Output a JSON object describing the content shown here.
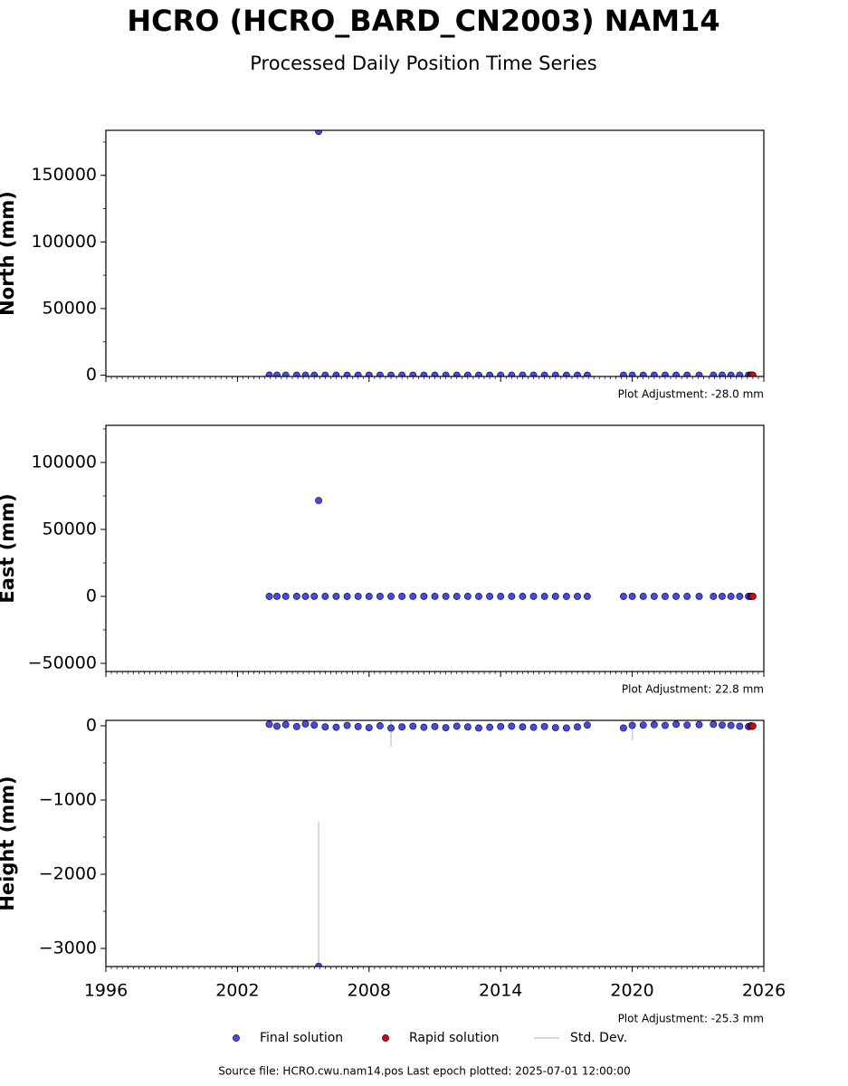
{
  "title": "HCRO (HCRO_BARD_CN2003) NAM14",
  "subtitle": "Processed Daily Position Time Series",
  "footnote": "Source file: HCRO.cwu.nam14.pos  Last epoch plotted: 2025-07-01 12:00:00",
  "chart_data": [
    {
      "type": "scatter",
      "ylabel": "North (mm)",
      "annotation": "Plot Adjustment: -28.0 mm",
      "ylim": [
        -1000,
        183800
      ],
      "yticks": [
        0,
        50000,
        100000,
        150000
      ],
      "series": [
        {
          "color": "#4a4ae0",
          "x": [
            2003.45,
            2003.8,
            2004.2,
            2004.7,
            2005.1,
            2005.5,
            2005.7,
            2006.0,
            2006.5,
            2007.0,
            2007.5,
            2008.0,
            2008.5,
            2009.0,
            2009.5,
            2010.0,
            2010.5,
            2011.0,
            2011.5,
            2012.0,
            2012.5,
            2013.0,
            2013.5,
            2014.0,
            2014.5,
            2015.0,
            2015.5,
            2016.0,
            2016.5,
            2017.0,
            2017.5,
            2017.95,
            2019.6,
            2020.0,
            2020.5,
            2021.0,
            2021.5,
            2022.0,
            2022.5,
            2023.05,
            2023.7,
            2024.1,
            2024.5,
            2024.9,
            2025.3
          ],
          "values": [
            15,
            -8,
            10,
            -3,
            6,
            4,
            183000,
            2,
            -4,
            5,
            -6,
            3,
            -2,
            7,
            -5,
            1,
            4,
            -3,
            6,
            -7,
            2,
            5,
            -4,
            3,
            -1,
            6,
            -2,
            4,
            -5,
            3,
            -6,
            2,
            8,
            -4,
            3,
            -2,
            5,
            -3,
            1,
            -6,
            4,
            -2,
            3,
            -1,
            2
          ]
        },
        {
          "color": "#e00000",
          "x": [
            2025.38,
            2025.42,
            2025.46,
            2025.5
          ],
          "values": [
            3,
            -2,
            4,
            1
          ]
        }
      ]
    },
    {
      "type": "scatter",
      "ylabel": "East (mm)",
      "annotation": "Plot Adjustment: 22.8 mm",
      "ylim": [
        -56100,
        127700
      ],
      "yticks": [
        {
          "value": -50000,
          "label": "−50000"
        },
        0,
        50000,
        100000
      ],
      "series": [
        {
          "color": "#4a4ae0",
          "x": [
            2003.45,
            2003.8,
            2004.2,
            2004.7,
            2005.1,
            2005.5,
            2005.7,
            2006.0,
            2006.5,
            2007.0,
            2007.5,
            2008.0,
            2008.5,
            2009.0,
            2009.5,
            2010.0,
            2010.5,
            2011.0,
            2011.5,
            2012.0,
            2012.5,
            2013.0,
            2013.5,
            2014.0,
            2014.5,
            2015.0,
            2015.5,
            2016.0,
            2016.5,
            2017.0,
            2017.5,
            2017.95,
            2019.6,
            2020.0,
            2020.5,
            2021.0,
            2021.5,
            2022.0,
            2022.5,
            2023.05,
            2023.7,
            2024.1,
            2024.5,
            2024.9,
            2025.3
          ],
          "values": [
            -10,
            6,
            -4,
            8,
            -2,
            5,
            71600,
            -3,
            4,
            -6,
            2,
            -5,
            7,
            -1,
            3,
            -4,
            6,
            -2,
            5,
            -7,
            1,
            -3,
            4,
            -6,
            2,
            -1,
            5,
            -4,
            3,
            -2,
            6,
            -5,
            -8,
            3,
            -4,
            2,
            -6,
            5,
            -3,
            4,
            -2,
            6,
            -1,
            3,
            -4
          ]
        },
        {
          "color": "#e00000",
          "x": [
            2025.38,
            2025.42,
            2025.46,
            2025.5
          ],
          "values": [
            -2,
            3,
            -1,
            2
          ]
        }
      ]
    },
    {
      "type": "scatter",
      "ylabel": "Height (mm)",
      "annotation": "Plot Adjustment: -25.3 mm",
      "ylim": [
        -3244,
        73
      ],
      "yticks": [
        {
          "value": -3000,
          "label": "−3000"
        },
        {
          "value": -2000,
          "label": "−2000"
        },
        {
          "value": -1000,
          "label": "−1000"
        },
        0
      ],
      "xlim": [
        1996,
        2026
      ],
      "xticks": [
        1996,
        2002,
        2008,
        2014,
        2020,
        2026
      ],
      "std_label": "Std. Dev.",
      "std_color": "#cccccc",
      "series": [
        {
          "name": "Final solution",
          "color": "#4a4ae0",
          "x": [
            2003.45,
            2003.8,
            2004.2,
            2004.7,
            2005.1,
            2005.5,
            2005.7,
            2006.0,
            2006.5,
            2007.0,
            2007.5,
            2008.0,
            2008.5,
            2009.0,
            2009.5,
            2010.0,
            2010.5,
            2011.0,
            2011.5,
            2012.0,
            2012.5,
            2013.0,
            2013.5,
            2014.0,
            2014.5,
            2015.0,
            2015.5,
            2016.0,
            2016.5,
            2017.0,
            2017.5,
            2017.95,
            2019.6,
            2020.0,
            2020.5,
            2021.0,
            2021.5,
            2022.0,
            2022.5,
            2023.05,
            2023.7,
            2024.1,
            2024.5,
            2024.9,
            2025.3
          ],
          "values": [
            20,
            -5,
            15,
            -10,
            25,
            10,
            -3240,
            -15,
            -20,
            5,
            -10,
            -25,
            0,
            -30,
            -15,
            -5,
            -20,
            -10,
            -25,
            -5,
            -15,
            -30,
            -20,
            -10,
            -5,
            -15,
            -20,
            -10,
            -25,
            -30,
            -15,
            10,
            -30,
            5,
            10,
            15,
            5,
            20,
            10,
            15,
            20,
            10,
            5,
            -5,
            -10
          ],
          "errors": [
            3,
            3,
            3,
            3,
            3,
            3,
            1940,
            3,
            3,
            3,
            3,
            3,
            3,
            250,
            3,
            3,
            3,
            3,
            3,
            3,
            3,
            3,
            3,
            3,
            3,
            3,
            3,
            3,
            3,
            3,
            3,
            3,
            3,
            200,
            3,
            3,
            3,
            3,
            3,
            3,
            3,
            3,
            3,
            3,
            3
          ]
        },
        {
          "name": "Rapid solution",
          "color": "#e00000",
          "x": [
            2025.38,
            2025.42,
            2025.46,
            2025.5
          ],
          "values": [
            -5,
            0,
            -8,
            -3
          ],
          "errors": [
            4,
            4,
            4,
            4
          ]
        }
      ]
    }
  ]
}
